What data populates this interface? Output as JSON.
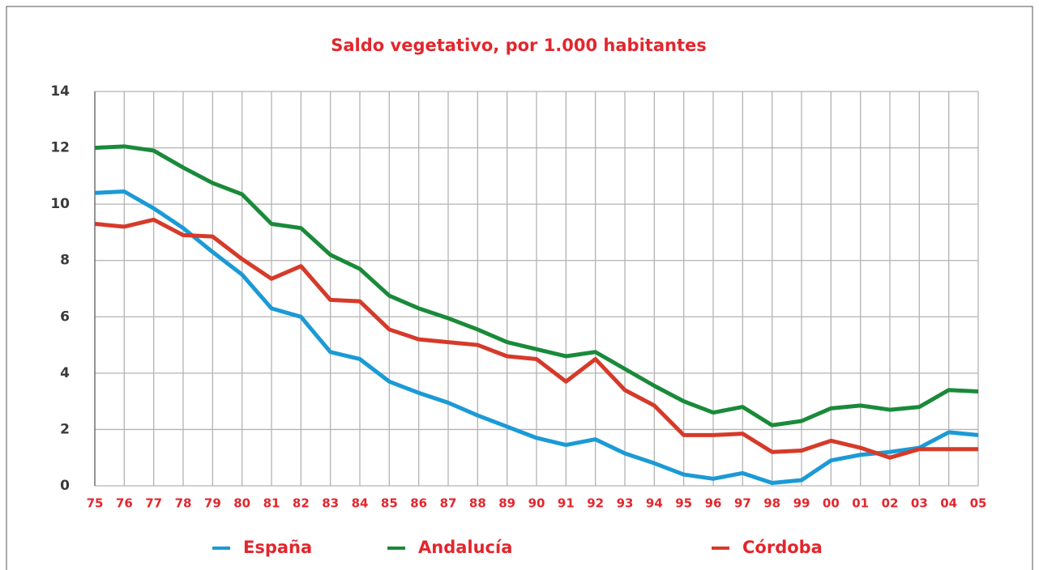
{
  "chart_data": {
    "type": "line",
    "title": "Saldo vegetativo, por 1.000 habitantes",
    "categories": [
      "75",
      "76",
      "77",
      "78",
      "79",
      "80",
      "81",
      "82",
      "83",
      "84",
      "85",
      "86",
      "87",
      "88",
      "89",
      "90",
      "91",
      "92",
      "93",
      "94",
      "95",
      "96",
      "97",
      "98",
      "99",
      "00",
      "01",
      "02",
      "03",
      "04",
      "05"
    ],
    "series": [
      {
        "name": "España",
        "color": "#1b9ad6",
        "values": [
          10.4,
          10.45,
          9.85,
          9.15,
          8.3,
          7.5,
          6.3,
          6.0,
          4.75,
          4.5,
          3.7,
          3.3,
          2.95,
          2.5,
          2.1,
          1.7,
          1.45,
          1.65,
          1.15,
          0.8,
          0.4,
          0.25,
          0.45,
          0.1,
          0.2,
          0.9,
          1.1,
          1.2,
          1.35,
          1.9,
          1.8
        ]
      },
      {
        "name": "Andalucía",
        "color": "#1a8a3a",
        "values": [
          12.0,
          12.05,
          11.9,
          11.3,
          10.75,
          10.35,
          9.3,
          9.15,
          8.2,
          7.7,
          6.75,
          6.3,
          5.95,
          5.55,
          5.1,
          4.85,
          4.6,
          4.75,
          4.15,
          3.55,
          3.0,
          2.6,
          2.8,
          2.15,
          2.3,
          2.75,
          2.85,
          2.7,
          2.8,
          3.4,
          3.35
        ]
      },
      {
        "name": "Córdoba",
        "color": "#d63a2a",
        "values": [
          9.3,
          9.2,
          9.45,
          8.9,
          8.85,
          8.05,
          7.35,
          7.8,
          6.6,
          6.55,
          5.55,
          5.2,
          5.1,
          5.0,
          4.6,
          4.5,
          3.7,
          4.5,
          3.4,
          2.85,
          1.8,
          1.8,
          1.85,
          1.2,
          1.25,
          1.6,
          1.35,
          1.0,
          1.3,
          1.3,
          1.3
        ]
      }
    ],
    "ylim": [
      0,
      14
    ],
    "yticks": [
      0,
      2,
      4,
      6,
      8,
      10,
      12,
      14
    ],
    "grid": true
  }
}
